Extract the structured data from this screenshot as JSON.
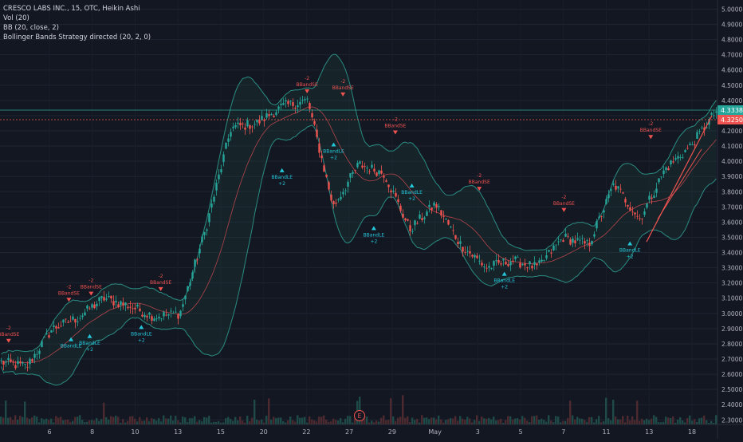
{
  "legend": {
    "symbol_line": "CRESCO LABS INC., 15, OTC, Heikin Ashi",
    "volume_line": "Vol (20)",
    "bb_line": "BB (20, close, 2)",
    "strategy_line": "Bollinger Bands Strategy directed (20, 2, 0)"
  },
  "price_labels": {
    "high": "4.3338",
    "last": "4.3250",
    "high_color": "#26a69a",
    "last_color": "#ef5350"
  },
  "earnings_marker": "E",
  "colors": {
    "background": "#131722",
    "up": "#26a69a",
    "down": "#ef5350",
    "band": "#2a8c82",
    "signal_long": "#26c6da",
    "signal_short": "#ef5350"
  },
  "chart_data": {
    "type": "candlestick",
    "y_ticks": [
      "2.3000",
      "2.4000",
      "2.5000",
      "2.6000",
      "2.7000",
      "2.8000",
      "2.9000",
      "3.0000",
      "3.1000",
      "3.2000",
      "3.3000",
      "3.4000",
      "3.5000",
      "3.6000",
      "3.7000",
      "3.8000",
      "3.9000",
      "4.0000",
      "4.1000",
      "4.2000",
      "4.3000",
      "4.4000",
      "4.5000",
      "4.6000",
      "4.7000",
      "4.8000",
      "4.9000",
      "5.0000"
    ],
    "ylim": [
      2.27,
      5.06
    ],
    "x_labels": [
      "6",
      "8",
      "10",
      "13",
      "15",
      "20",
      "22",
      "27",
      "29",
      "May",
      "3",
      "5",
      "7",
      "11",
      "13",
      "18"
    ],
    "price_anchors": [
      2.68,
      2.65,
      2.9,
      2.97,
      3.1,
      3.05,
      2.98,
      3.0,
      3.55,
      4.22,
      4.25,
      4.36,
      4.4,
      3.7,
      3.98,
      3.92,
      3.55,
      3.72,
      3.45,
      3.3,
      3.35,
      3.3,
      3.5,
      3.45,
      3.85,
      3.62,
      3.95,
      4.1,
      4.33
    ],
    "signals": [
      {
        "label": "BBandSE",
        "count": "-2",
        "type": "short",
        "pos": 0.012,
        "price": 2.78
      },
      {
        "label": "BBandSE",
        "count": "-2",
        "type": "short",
        "pos": 0.096,
        "price": 3.05
      },
      {
        "label": "BBandLE",
        "count": "",
        "type": "long",
        "pos": 0.099,
        "price": 2.87
      },
      {
        "label": "BBandSE",
        "count": "-2",
        "type": "short",
        "pos": 0.127,
        "price": 3.09
      },
      {
        "label": "BBandLE",
        "count": "+2",
        "type": "long",
        "pos": 0.125,
        "price": 2.89
      },
      {
        "label": "BBandLE",
        "count": "+2",
        "type": "long",
        "pos": 0.197,
        "price": 2.95
      },
      {
        "label": "BBandSE",
        "count": "-2",
        "type": "short",
        "pos": 0.224,
        "price": 3.12
      },
      {
        "label": "BBandLE",
        "count": "+2",
        "type": "long",
        "pos": 0.393,
        "price": 3.98
      },
      {
        "label": "BBandSE",
        "count": "-2",
        "type": "short",
        "pos": 0.428,
        "price": 4.42
      },
      {
        "label": "BBandLE",
        "count": "+2",
        "type": "long",
        "pos": 0.465,
        "price": 4.15
      },
      {
        "label": "BBandSE",
        "count": "-2",
        "type": "short",
        "pos": 0.478,
        "price": 4.4
      },
      {
        "label": "BBandLE",
        "count": "+2",
        "type": "long",
        "pos": 0.521,
        "price": 3.6
      },
      {
        "label": "BBandSE",
        "count": "-2",
        "type": "short",
        "pos": 0.551,
        "price": 4.15
      },
      {
        "label": "BBandLE",
        "count": "+2",
        "type": "long",
        "pos": 0.574,
        "price": 3.88
      },
      {
        "label": "BBandSE",
        "count": "-2",
        "type": "short",
        "pos": 0.668,
        "price": 3.78
      },
      {
        "label": "BBandLE",
        "count": "+2",
        "type": "long",
        "pos": 0.703,
        "price": 3.3
      },
      {
        "label": "BBandSE",
        "count": "-2",
        "type": "short",
        "pos": 0.786,
        "price": 3.64
      },
      {
        "label": "BBandLE",
        "count": "+2",
        "type": "long",
        "pos": 0.878,
        "price": 3.5
      },
      {
        "label": "BBandSE",
        "count": "-2",
        "type": "short",
        "pos": 0.907,
        "price": 4.12
      }
    ]
  }
}
